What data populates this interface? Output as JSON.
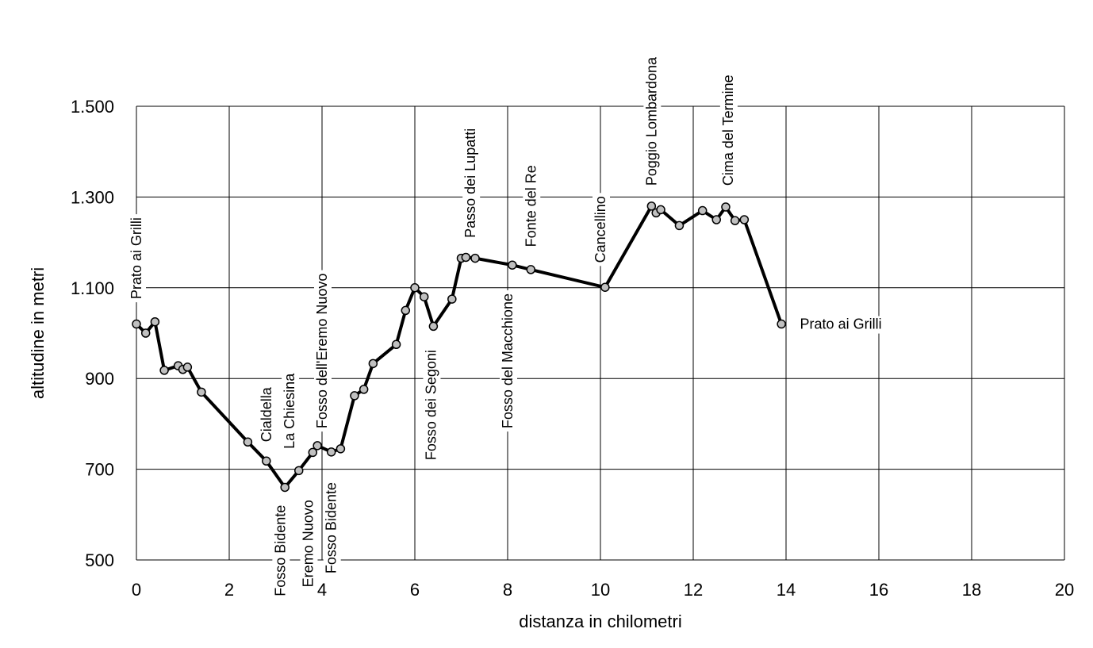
{
  "chart_data": {
    "type": "line",
    "title": "",
    "xlabel": "distanza in chilometri",
    "ylabel": "altitudine  in metri",
    "xlim": [
      0,
      20
    ],
    "ylim": [
      500,
      1500
    ],
    "x_ticks": [
      0,
      2,
      4,
      6,
      8,
      10,
      12,
      14,
      16,
      18,
      20
    ],
    "x_tick_labels": [
      "0",
      "2",
      "4",
      "6",
      "8",
      "10",
      "12",
      "14",
      "16",
      "18",
      "20"
    ],
    "y_ticks": [
      500,
      700,
      900,
      1100,
      1300,
      1500
    ],
    "y_tick_labels": [
      "500",
      "700",
      "900",
      "1.100",
      "1.300",
      "1.500"
    ],
    "grid": true,
    "legend": "none",
    "colors": {
      "line": "#000000",
      "marker_fill": "#c0c0c0",
      "marker_stroke": "#000000",
      "grid": "#000000"
    },
    "series": [
      {
        "x": [
          0,
          0.2,
          0.4,
          0.6,
          0.9,
          1.0,
          1.1,
          1.4,
          2.4,
          2.8,
          3.2,
          3.5,
          3.8,
          3.9,
          4.2,
          4.4,
          4.7,
          4.9,
          5.1,
          5.6,
          5.8,
          6.0,
          6.2,
          6.4,
          6.8,
          7.0,
          7.1,
          7.3,
          8.1,
          8.5,
          10.1,
          11.1,
          11.2,
          11.3,
          11.7,
          12.2,
          12.5,
          12.7,
          12.9,
          13.1,
          13.9
        ],
        "y": [
          1020,
          1000,
          1025,
          918,
          928,
          920,
          925,
          870,
          760,
          718,
          660,
          697,
          737,
          752,
          738,
          745,
          862,
          876,
          933,
          975,
          1050,
          1100,
          1080,
          1015,
          1075,
          1165,
          1167,
          1165,
          1150,
          1140,
          1101,
          1280,
          1265,
          1272,
          1237,
          1270,
          1250,
          1278,
          1248,
          1250,
          1020
        ]
      }
    ],
    "annotations": [
      {
        "text": "Prato ai Grilli",
        "x": 0.0,
        "y": 1075,
        "orientation": "vertical"
      },
      {
        "text": "Cialdella",
        "x": 2.8,
        "y": 760,
        "orientation": "vertical"
      },
      {
        "text": "La Chiesina",
        "x": 3.3,
        "y": 745,
        "orientation": "vertical"
      },
      {
        "text": "Fosso dell'Eremo Nuovo",
        "x": 4.0,
        "y": 790,
        "orientation": "vertical"
      },
      {
        "text": "Fosso Bidente",
        "x": 3.1,
        "y": 420,
        "orientation": "vertical"
      },
      {
        "text": "Eremo Nuovo",
        "x": 3.7,
        "y": 440,
        "orientation": "vertical"
      },
      {
        "text": "Fosso Bidente",
        "x": 4.2,
        "y": 470,
        "orientation": "vertical"
      },
      {
        "text": "Fosso dei Segoni",
        "x": 6.35,
        "y": 720,
        "orientation": "vertical"
      },
      {
        "text": "Passo dei Lupatti",
        "x": 7.2,
        "y": 1210,
        "orientation": "vertical"
      },
      {
        "text": "Fosso del Macchione",
        "x": 8.0,
        "y": 790,
        "orientation": "vertical"
      },
      {
        "text": "Fonte del Re",
        "x": 8.5,
        "y": 1190,
        "orientation": "vertical"
      },
      {
        "text": "Cancellino",
        "x": 10.0,
        "y": 1155,
        "orientation": "vertical"
      },
      {
        "text": "Poggio Lombardona",
        "x": 11.1,
        "y": 1325,
        "orientation": "vertical"
      },
      {
        "text": "Cima del Termine",
        "x": 12.75,
        "y": 1325,
        "orientation": "vertical"
      },
      {
        "text": "Prato ai Grilli",
        "x": 14.3,
        "y": 1020,
        "orientation": "horizontal"
      }
    ]
  }
}
